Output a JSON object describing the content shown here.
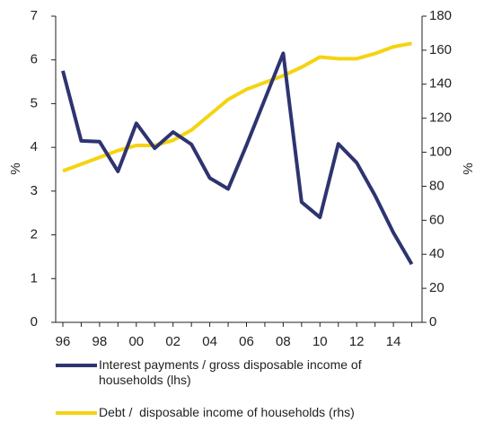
{
  "chart_data": {
    "type": "line",
    "categories": [
      "96",
      null,
      "98",
      null,
      "00",
      null,
      "02",
      null,
      "04",
      null,
      "06",
      null,
      "08",
      null,
      "10",
      null,
      "12",
      null,
      "14",
      null
    ],
    "ylabel": "%",
    "y2label": "%",
    "ylim": [
      0,
      7
    ],
    "yticks": [
      0,
      1,
      2,
      3,
      4,
      5,
      6,
      7
    ],
    "y2lim": [
      0,
      180
    ],
    "y2ticks": [
      0,
      20,
      40,
      60,
      80,
      100,
      120,
      140,
      160,
      180
    ],
    "legend": "bottom",
    "series": [
      {
        "name": "Interest payments / gross disposable income of households (lhs)",
        "color": "#2e3470",
        "values": [
          5.75,
          4.15,
          4.13,
          3.45,
          4.55,
          3.98,
          4.35,
          4.07,
          3.3,
          3.05,
          4.05,
          5.1,
          6.15,
          2.75,
          2.4,
          4.08,
          3.65,
          2.9,
          2.05,
          1.33
        ]
      },
      {
        "name": "Debt /  disposable income of households (rhs)",
        "color": "#f5d312",
        "axis": "y2",
        "values": [
          89,
          93,
          97,
          101,
          104,
          104,
          107,
          113,
          122,
          131,
          137,
          141,
          145,
          150,
          156,
          155,
          155,
          158,
          162,
          164
        ]
      }
    ]
  }
}
